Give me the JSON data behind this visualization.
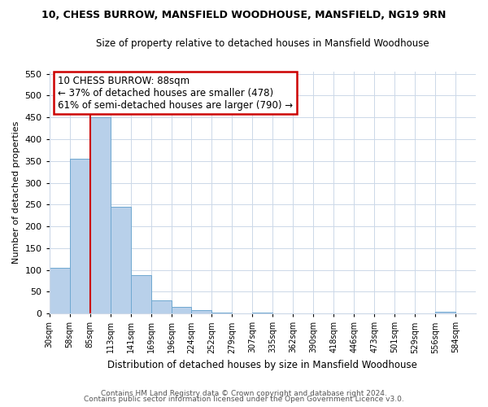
{
  "title1": "10, CHESS BURROW, MANSFIELD WOODHOUSE, MANSFIELD, NG19 9RN",
  "title2": "Size of property relative to detached houses in Mansfield Woodhouse",
  "xlabel": "Distribution of detached houses by size in Mansfield Woodhouse",
  "ylabel": "Number of detached properties",
  "footnote1": "Contains HM Land Registry data © Crown copyright and database right 2024.",
  "footnote2": "Contains public sector information licensed under the Open Government Licence v3.0.",
  "bin_labels": [
    "30sqm",
    "58sqm",
    "85sqm",
    "113sqm",
    "141sqm",
    "169sqm",
    "196sqm",
    "224sqm",
    "252sqm",
    "279sqm",
    "307sqm",
    "335sqm",
    "362sqm",
    "390sqm",
    "418sqm",
    "446sqm",
    "473sqm",
    "501sqm",
    "529sqm",
    "556sqm",
    "584sqm"
  ],
  "bar_heights": [
    105,
    355,
    450,
    245,
    88,
    30,
    15,
    7,
    2,
    0,
    2,
    0,
    0,
    0,
    0,
    0,
    0,
    0,
    0,
    4,
    0
  ],
  "bar_color": "#b8d0ea",
  "bar_edge_color": "#6fa8d0",
  "subject_line_color": "#cc0000",
  "ylim": [
    0,
    555
  ],
  "yticks": [
    0,
    50,
    100,
    150,
    200,
    250,
    300,
    350,
    400,
    450,
    500,
    550
  ],
  "annotation_title": "10 CHESS BURROW: 88sqm",
  "annotation_line1": "← 37% of detached houses are smaller (478)",
  "annotation_line2": "61% of semi-detached houses are larger (790) →",
  "bg_color": "#ffffff",
  "grid_color": "#ccd8e8"
}
